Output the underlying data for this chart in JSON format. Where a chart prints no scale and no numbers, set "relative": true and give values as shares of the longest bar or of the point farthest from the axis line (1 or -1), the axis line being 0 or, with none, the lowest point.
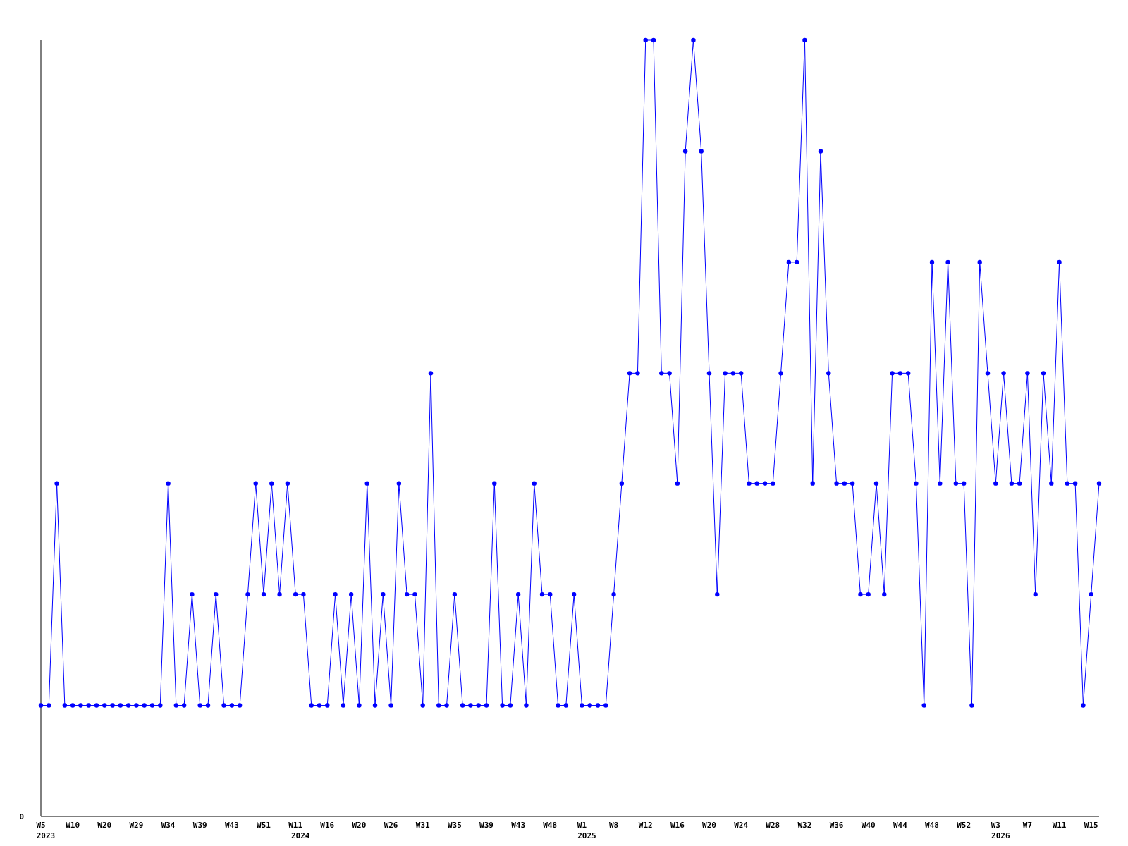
{
  "chart_data": {
    "type": "line",
    "relative": true,
    "annotations": [
      "0",
      "2023",
      "2024",
      "2025",
      "2026"
    ],
    "marker": "circle",
    "line_style": "solid",
    "categories": [
      "W5",
      null,
      null,
      null,
      "W10",
      null,
      null,
      null,
      "W20",
      null,
      null,
      null,
      "W29",
      null,
      null,
      null,
      "W34",
      null,
      null,
      null,
      "W39",
      null,
      null,
      null,
      "W43",
      null,
      null,
      null,
      "W51",
      null,
      null,
      null,
      "W11",
      null,
      null,
      null,
      "W16",
      null,
      null,
      null,
      "W20",
      null,
      null,
      null,
      "W26",
      null,
      null,
      null,
      "W31",
      null,
      null,
      null,
      "W35",
      null,
      null,
      null,
      "W39",
      null,
      null,
      null,
      "W43",
      null,
      null,
      null,
      "W48",
      null,
      null,
      null,
      "W1",
      null,
      null,
      null,
      "W8",
      null,
      null,
      null,
      "W12",
      null,
      null,
      null,
      "W16",
      null,
      null,
      null,
      "W20",
      null,
      null,
      null,
      "W24",
      null,
      null,
      null,
      "W28",
      null,
      null,
      null,
      "W32",
      null,
      null,
      null,
      "W36",
      null,
      null,
      null,
      "W40",
      null,
      null,
      null,
      "W44",
      null,
      null,
      null,
      "W48",
      null,
      null,
      null,
      "W52",
      null,
      null,
      null,
      "W3",
      null,
      null,
      null,
      "W7",
      null,
      null,
      null,
      "W11",
      null,
      null,
      null,
      "W15",
      null
    ],
    "series": [
      {
        "color": "#0000ff",
        "values": [
          0.143,
          0.143,
          0.429,
          0.143,
          0.143,
          0.143,
          0.143,
          0.143,
          0.143,
          0.143,
          0.143,
          0.143,
          0.143,
          0.143,
          0.143,
          0.143,
          0.429,
          0.143,
          0.143,
          0.286,
          0.143,
          0.143,
          0.286,
          0.143,
          0.143,
          0.143,
          0.286,
          0.429,
          0.286,
          0.429,
          0.286,
          0.429,
          0.286,
          0.286,
          0.143,
          0.143,
          0.143,
          0.286,
          0.143,
          0.286,
          0.143,
          0.429,
          0.143,
          0.286,
          0.143,
          0.429,
          0.286,
          0.286,
          0.143,
          0.571,
          0.143,
          0.143,
          0.286,
          0.143,
          0.143,
          0.143,
          0.143,
          0.429,
          0.143,
          0.143,
          0.286,
          0.143,
          0.429,
          0.286,
          0.286,
          0.143,
          0.143,
          0.286,
          0.143,
          0.143,
          0.143,
          0.143,
          0.286,
          0.429,
          0.571,
          0.571,
          1,
          1,
          0.571,
          0.571,
          0.429,
          0.857,
          1,
          0.857,
          0.571,
          0.286,
          0.571,
          0.571,
          0.571,
          0.429,
          0.429,
          0.429,
          0.429,
          0.571,
          0.714,
          0.714,
          1,
          0.429,
          0.857,
          0.571,
          0.429,
          0.429,
          0.429,
          0.286,
          0.286,
          0.429,
          0.286,
          0.571,
          0.571,
          0.571,
          0.429,
          0.143,
          0.714,
          0.429,
          0.714,
          0.429,
          0.429,
          0.143,
          0.714,
          0.571,
          0.429,
          0.571,
          0.429,
          0.429,
          0.571,
          0.286,
          0.571,
          0.429,
          0.714,
          0.429,
          0.429,
          0.143,
          0.286,
          0.429
        ]
      }
    ]
  }
}
